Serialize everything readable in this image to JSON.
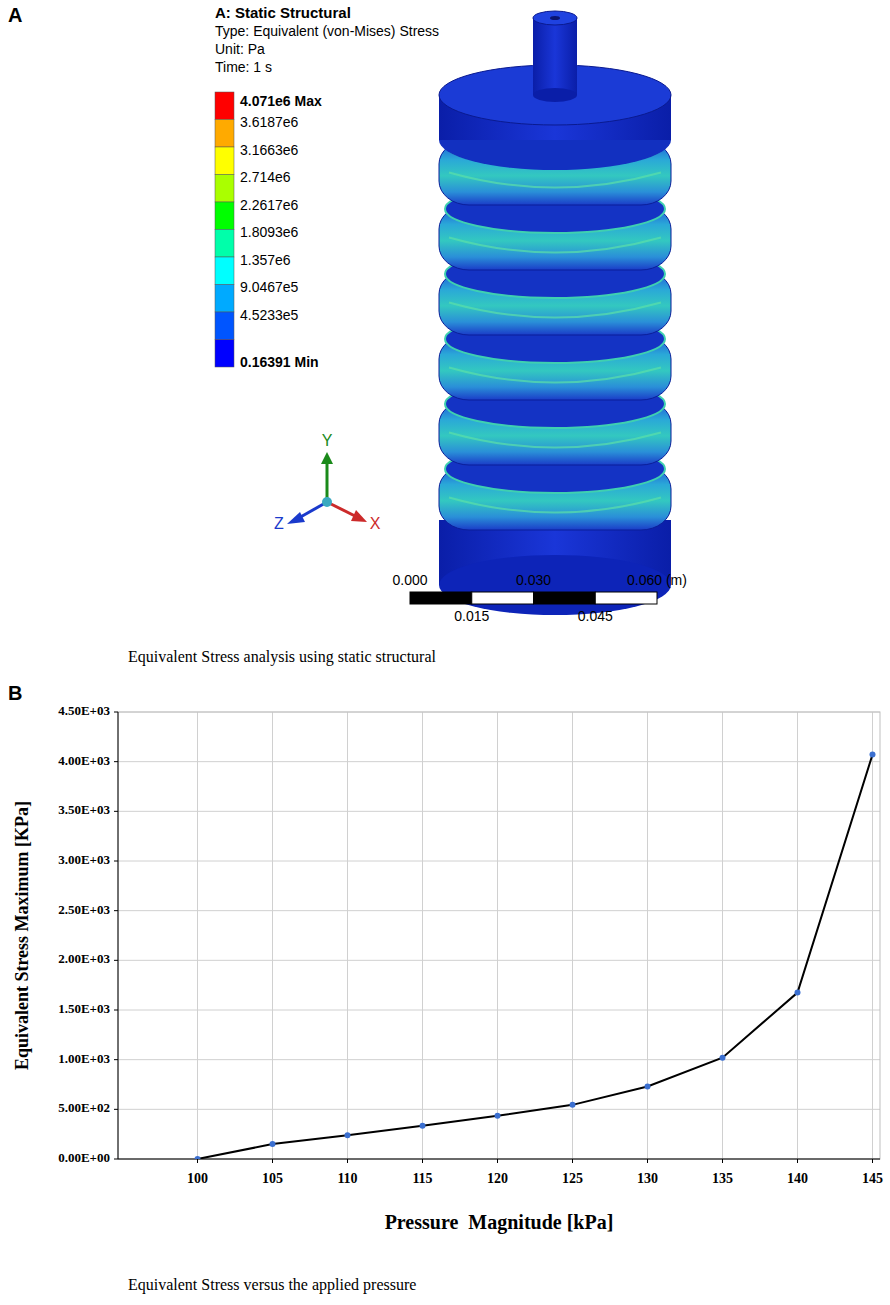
{
  "panel_a": {
    "panel": "A",
    "header": [
      "A: Static Structural",
      "Type: Equivalent (von-Mises) Stress",
      "Unit: Pa",
      "Time: 1 s"
    ],
    "legend": [
      {
        "label": "4.071e6 Max",
        "color": "#ff0000"
      },
      {
        "label": "3.6187e6",
        "color": "#ffaa00"
      },
      {
        "label": "3.1663e6",
        "color": "#ffff00"
      },
      {
        "label": "2.714e6",
        "color": "#aaff00"
      },
      {
        "label": "2.2617e6",
        "color": "#00ff00"
      },
      {
        "label": "1.8093e6",
        "color": "#00ffaa"
      },
      {
        "label": "1.357e6",
        "color": "#00ffff"
      },
      {
        "label": "9.0467e5",
        "color": "#00aaff"
      },
      {
        "label": "4.5233e5",
        "color": "#0055ff"
      },
      {
        "label": "0.16391 Min",
        "color": "#0000ff"
      }
    ],
    "axes": [
      "Y",
      "Z",
      "X"
    ],
    "scale_bar": {
      "top": [
        "0.000",
        "0.030",
        "0.060 (m)"
      ],
      "bottom": [
        "0.015",
        "0.045"
      ]
    },
    "caption": "Equivalent Stress analysis using static structural"
  },
  "chart_data": {
    "type": "line",
    "panel": "B",
    "caption": "Equivalent Stress versus the applied pressure",
    "x_label": "Pressure  Magnitude [kPa]",
    "y_label": "Equivalent Stress Maximum [KPa]",
    "x": [
      100,
      105,
      110,
      115,
      120,
      125,
      130,
      135,
      140,
      145
    ],
    "values": [
      0,
      150,
      240,
      335,
      435,
      545,
      730,
      1020,
      1675,
      4071
    ],
    "color": "#000000",
    "marker": "circle",
    "xlim": [
      94.7,
      145.5
    ],
    "xticks": [
      100,
      105,
      110,
      115,
      120,
      125,
      130,
      135,
      140,
      145
    ],
    "ylim": [
      0,
      4500
    ],
    "yticks": [
      {
        "value": 0,
        "label": "0.00E+00"
      },
      {
        "value": 500,
        "label": "5.00E+02"
      },
      {
        "value": 1000,
        "label": "1.00E+03"
      },
      {
        "value": 1500,
        "label": "1.50E+03"
      },
      {
        "value": 2000,
        "label": "2.00E+03"
      },
      {
        "value": 2500,
        "label": "2.50E+03"
      },
      {
        "value": 3000,
        "label": "3.00E+03"
      },
      {
        "value": 3500,
        "label": "3.50E+03"
      },
      {
        "value": 4000,
        "label": "4.00E+03"
      },
      {
        "value": 4500,
        "label": "4.50E+03"
      }
    ],
    "grid": true
  }
}
